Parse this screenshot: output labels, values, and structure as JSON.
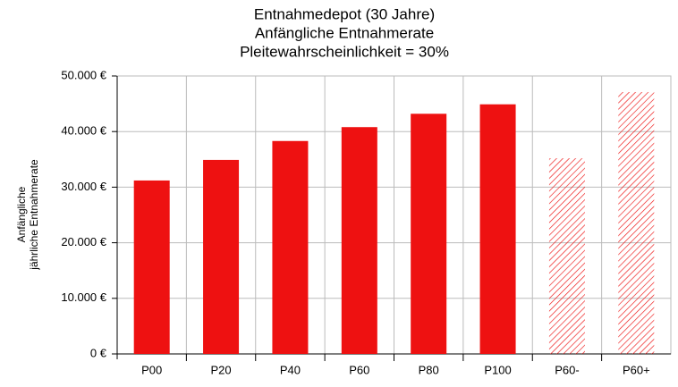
{
  "chart_data": {
    "type": "bar",
    "title": [
      "Entnahmedepot (30 Jahre)",
      "Anfängliche Entnahmerate",
      "Pleitewahrscheinlichkeit = 30%"
    ],
    "ylabel": [
      "Anfängliche",
      "jährliche Entnahmerate"
    ],
    "categories": [
      "P00",
      "P20",
      "P40",
      "P60",
      "P80",
      "P100",
      "P60-",
      "P60+"
    ],
    "values": [
      31200,
      34900,
      38300,
      40800,
      43200,
      44900,
      35200,
      47100
    ],
    "hatched": [
      false,
      false,
      false,
      false,
      false,
      false,
      true,
      true
    ],
    "color": "#ee1111",
    "ylim": [
      0,
      50000
    ],
    "yticks": [
      {
        "value": 0,
        "label": "0 €"
      },
      {
        "value": 10000,
        "label": "10.000 €"
      },
      {
        "value": 20000,
        "label": "20.000 €"
      },
      {
        "value": 30000,
        "label": "30.000 €"
      },
      {
        "value": 40000,
        "label": "40.000 €"
      },
      {
        "value": 50000,
        "label": "50.000 €"
      }
    ],
    "grid": true
  }
}
